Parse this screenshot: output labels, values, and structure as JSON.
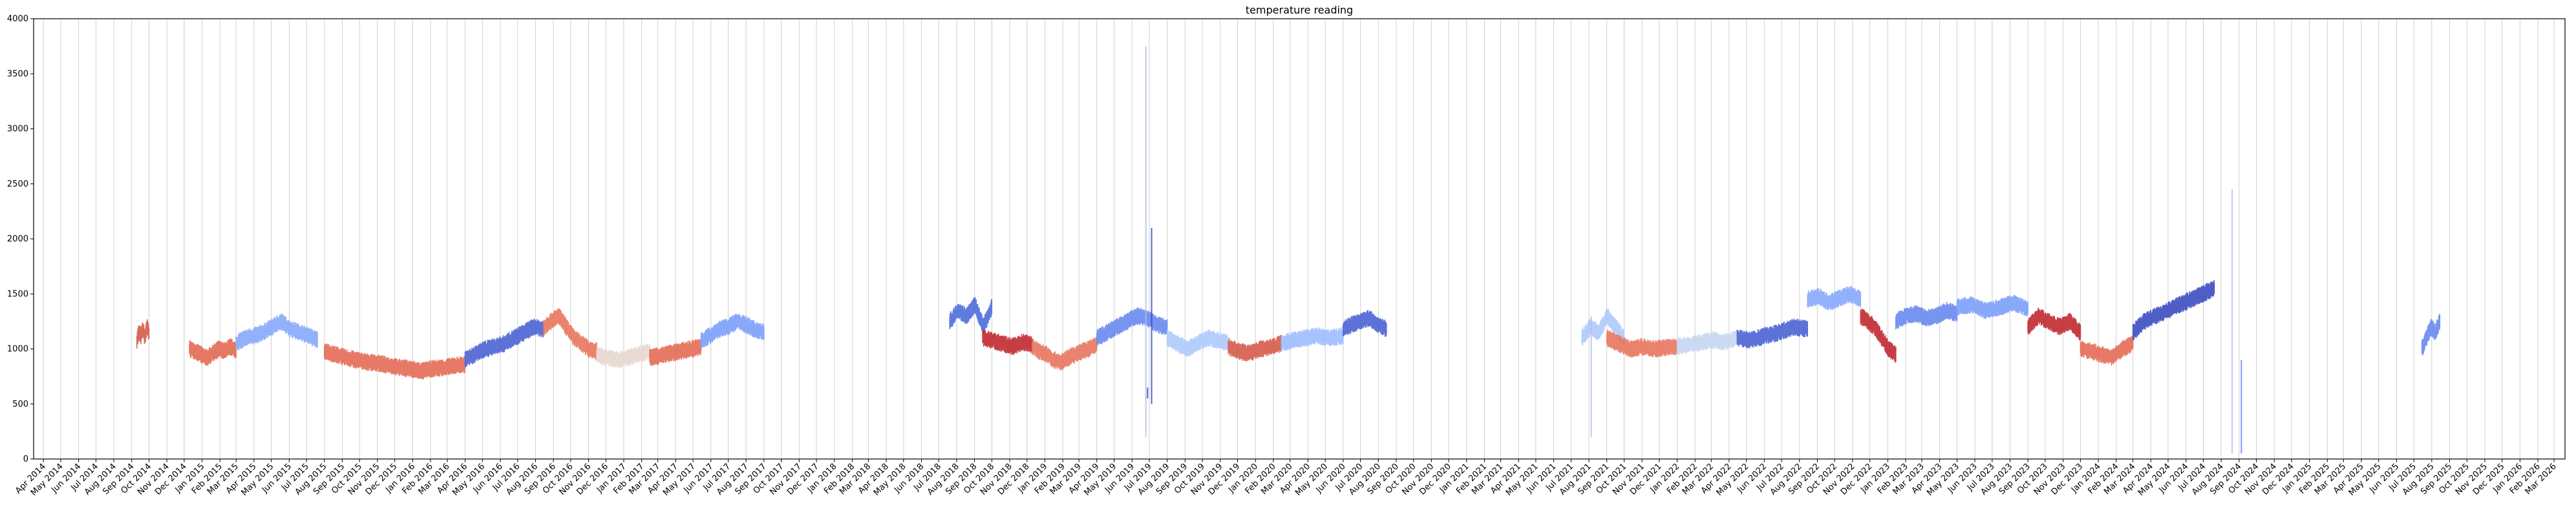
{
  "chart_data": {
    "type": "scatter",
    "title": "temperature reading",
    "xlabel": "",
    "ylabel": "",
    "ylim": [
      0,
      4000
    ],
    "xlim": [
      "2014-03-15",
      "2026-03-20"
    ],
    "y_ticks": [
      0,
      500,
      1000,
      1500,
      2000,
      2500,
      3000,
      3500,
      4000
    ],
    "x_ticks": [
      "Apr 2014",
      "May 2014",
      "Jun 2014",
      "Jul 2014",
      "Aug 2014",
      "Sep 2014",
      "Oct 2014",
      "Nov 2014",
      "Dec 2014",
      "Jan 2015",
      "Feb 2015",
      "Mar 2015",
      "Apr 2015",
      "May 2015",
      "Jun 2015",
      "Jul 2015",
      "Aug 2015",
      "Sep 2015",
      "Oct 2015",
      "Nov 2015",
      "Dec 2015",
      "Jan 2016",
      "Feb 2016",
      "Mar 2016",
      "Apr 2016",
      "May 2016",
      "Jun 2016",
      "Jul 2016",
      "Aug 2016",
      "Sep 2016",
      "Oct 2016",
      "Nov 2016",
      "Dec 2016",
      "Jan 2017",
      "Feb 2017",
      "Mar 2017",
      "Apr 2017",
      "May 2017",
      "Jun 2017",
      "Jul 2017",
      "Aug 2017",
      "Sep 2017",
      "Oct 2017",
      "Nov 2017",
      "Dec 2017",
      "Jan 2018",
      "Feb 2018",
      "Mar 2018",
      "Apr 2018",
      "May 2018",
      "Jun 2018",
      "Jul 2018",
      "Aug 2018",
      "Sep 2018",
      "Oct 2018",
      "Nov 2018",
      "Dec 2018",
      "Jan 2019",
      "Feb 2019",
      "Mar 2019",
      "Apr 2019",
      "May 2019",
      "Jun 2019",
      "Jul 2019",
      "Aug 2019",
      "Sep 2019",
      "Oct 2019",
      "Nov 2019",
      "Dec 2019",
      "Jan 2020",
      "Feb 2020",
      "Mar 2020",
      "Apr 2020",
      "May 2020",
      "Jun 2020",
      "Jul 2020",
      "Aug 2020",
      "Sep 2020",
      "Oct 2020",
      "Nov 2020",
      "Dec 2020",
      "Jan 2021",
      "Feb 2021",
      "Mar 2021",
      "Apr 2021",
      "May 2021",
      "Jun 2021",
      "Jul 2021",
      "Aug 2021",
      "Sep 2021",
      "Oct 2021",
      "Nov 2021",
      "Dec 2021",
      "Jan 2022",
      "Feb 2022",
      "Mar 2022",
      "Apr 2022",
      "May 2022",
      "Jun 2022",
      "Jul 2022",
      "Aug 2022",
      "Sep 2022",
      "Oct 2022",
      "Nov 2022",
      "Dec 2022",
      "Jan 2023",
      "Feb 2023",
      "Mar 2023",
      "Apr 2023",
      "May 2023",
      "Jun 2023",
      "Jul 2023",
      "Aug 2023",
      "Sep 2023",
      "Oct 2023",
      "Nov 2023",
      "Dec 2023",
      "Jan 2024",
      "Feb 2024",
      "Mar 2024",
      "Apr 2024",
      "May 2024",
      "Jun 2024",
      "Jul 2024",
      "Aug 2024",
      "Sep 2024",
      "Oct 2024",
      "Nov 2024",
      "Dec 2024",
      "Jan 2025",
      "Feb 2025",
      "Mar 2025",
      "Apr 2025",
      "May 2025",
      "Jun 2025",
      "Jul 2025",
      "Aug 2025",
      "Sep 2025",
      "Oct 2025",
      "Nov 2025",
      "Dec 2025",
      "Jan 2026",
      "Feb 2026",
      "Mar 2026"
    ],
    "grid": "vertical",
    "colormap": "coolwarm",
    "segments": [
      {
        "start": "2014-09-10",
        "end": "2014-10-01",
        "values": [
          1080,
          1150,
          1120,
          1180,
          1100,
          1200,
          1150
        ],
        "color": "#d65a4a"
      },
      {
        "start": "2014-12-10",
        "end": "2015-03-01",
        "values": [
          1000,
          980,
          950,
          920,
          960,
          1000,
          980,
          1020,
          990
        ],
        "color": "#e26952"
      },
      {
        "start": "2015-03-01",
        "end": "2015-07-20",
        "values": [
          1050,
          1100,
          1120,
          1150,
          1200,
          1250,
          1180,
          1150,
          1120,
          1080
        ],
        "color": "#86a9fc"
      },
      {
        "start": "2015-08-01",
        "end": "2016-04-01",
        "values": [
          980,
          950,
          920,
          900,
          880,
          870,
          850,
          830,
          820,
          800,
          820,
          830,
          850,
          860
        ],
        "color": "#e36c55"
      },
      {
        "start": "2016-04-01",
        "end": "2016-08-15",
        "values": [
          900,
          950,
          1000,
          1020,
          1050,
          1100,
          1150,
          1200,
          1180
        ],
        "color": "#4a63d3"
      },
      {
        "start": "2016-08-15",
        "end": "2016-11-15",
        "values": [
          1200,
          1250,
          1300,
          1200,
          1100,
          1050,
          1000,
          980
        ],
        "color": "#e8765e"
      },
      {
        "start": "2016-11-15",
        "end": "2017-02-15",
        "values": [
          950,
          920,
          900,
          920,
          950,
          980
        ],
        "color": "#e6d7cf"
      },
      {
        "start": "2017-02-15",
        "end": "2017-05-15",
        "values": [
          920,
          940,
          960,
          980,
          1000,
          1020
        ],
        "color": "#e36c55"
      },
      {
        "start": "2017-05-15",
        "end": "2017-09-01",
        "values": [
          1080,
          1120,
          1180,
          1200,
          1250,
          1220,
          1180,
          1150
        ],
        "color": "#7b9ff9"
      },
      {
        "start": "2018-07-20",
        "end": "2018-10-01",
        "values": [
          1250,
          1350,
          1300,
          1400,
          1200,
          1380
        ],
        "color": "#4c6edb"
      },
      {
        "start": "2018-09-15",
        "end": "2018-12-10",
        "values": [
          1100,
          1080,
          1050,
          1020,
          1060,
          1040
        ],
        "color": "#c0282f"
      },
      {
        "start": "2018-12-10",
        "end": "2019-04-01",
        "values": [
          1020,
          980,
          950,
          900,
          880,
          920,
          950,
          980,
          1000,
          1050
        ],
        "color": "#e8765e"
      },
      {
        "start": "2019-04-01",
        "end": "2019-08-01",
        "values": [
          1100,
          1150,
          1200,
          1250,
          1300,
          1280,
          1220,
          1200
        ],
        "color": "#6788ee"
      },
      {
        "start": "2019-08-01",
        "end": "2019-11-15",
        "values": [
          1100,
          1050,
          1000,
          1050,
          1100,
          1080,
          1050
        ],
        "color": "#aec9fc"
      },
      {
        "start": "2019-11-15",
        "end": "2020-02-15",
        "values": [
          1020,
          980,
          960,
          1000,
          1020,
          1050
        ],
        "color": "#d65a4a"
      },
      {
        "start": "2020-02-15",
        "end": "2020-06-01",
        "values": [
          1050,
          1080,
          1100,
          1120,
          1100,
          1120
        ],
        "color": "#9dbdff"
      },
      {
        "start": "2020-06-01",
        "end": "2020-08-15",
        "values": [
          1180,
          1220,
          1250,
          1280,
          1220,
          1180
        ],
        "color": "#4a63d3"
      },
      {
        "start": "2021-07-20",
        "end": "2021-10-01",
        "values": [
          1100,
          1200,
          1150,
          1300,
          1200,
          1100
        ],
        "color": "#aec9fc"
      },
      {
        "start": "2021-09-01",
        "end": "2022-01-01",
        "values": [
          1100,
          1050,
          1000,
          1020,
          1000,
          1010,
          1020
        ],
        "color": "#e8765e"
      },
      {
        "start": "2022-01-01",
        "end": "2022-04-15",
        "values": [
          1020,
          1040,
          1060,
          1080,
          1060,
          1100
        ],
        "color": "#c5d6f2"
      },
      {
        "start": "2022-04-15",
        "end": "2022-08-15",
        "values": [
          1100,
          1080,
          1120,
          1150,
          1200,
          1180
        ],
        "color": "#4a63d3"
      },
      {
        "start": "2022-08-15",
        "end": "2022-11-15",
        "values": [
          1450,
          1480,
          1420,
          1460,
          1500,
          1450
        ],
        "color": "#86a9fc"
      },
      {
        "start": "2022-11-15",
        "end": "2023-01-15",
        "values": [
          1300,
          1250,
          1200,
          1100,
          1000,
          950
        ],
        "color": "#c0282f"
      },
      {
        "start": "2023-01-15",
        "end": "2023-05-01",
        "values": [
          1250,
          1300,
          1320,
          1280,
          1300,
          1350,
          1320
        ],
        "color": "#6788ee"
      },
      {
        "start": "2023-05-01",
        "end": "2023-09-01",
        "values": [
          1380,
          1400,
          1350,
          1380,
          1420,
          1360
        ],
        "color": "#7b9ff9"
      },
      {
        "start": "2023-09-01",
        "end": "2023-12-01",
        "values": [
          1200,
          1300,
          1250,
          1200,
          1250,
          1150
        ],
        "color": "#c0282f"
      },
      {
        "start": "2023-12-01",
        "end": "2024-03-01",
        "values": [
          1000,
          980,
          950,
          920,
          1000,
          1050
        ],
        "color": "#e36c55"
      },
      {
        "start": "2024-03-01",
        "end": "2024-07-20",
        "values": [
          1150,
          1250,
          1300,
          1350,
          1400,
          1450,
          1500,
          1550
        ],
        "color": "#3b4cc0"
      },
      {
        "start": "2025-07-15",
        "end": "2025-08-15",
        "values": [
          1000,
          1100,
          1200,
          1150,
          1250
        ],
        "color": "#6788ee"
      }
    ],
    "spikes": [
      {
        "date": "2019-06-25",
        "min": 200,
        "max": 3750,
        "color": "#b4c4e4"
      },
      {
        "date": "2019-07-05",
        "min": 500,
        "max": 2100,
        "color": "#3b4cc0"
      },
      {
        "date": "2019-06-28",
        "min": 550,
        "max": 650,
        "color": "#3b4cc0"
      },
      {
        "date": "2024-08-20",
        "min": 50,
        "max": 2450,
        "color": "#b4c4e4"
      },
      {
        "date": "2024-09-05",
        "min": 50,
        "max": 900,
        "color": "#6788ee"
      },
      {
        "date": "2021-08-05",
        "min": 200,
        "max": 1300,
        "color": "#b4c4e4"
      }
    ]
  }
}
